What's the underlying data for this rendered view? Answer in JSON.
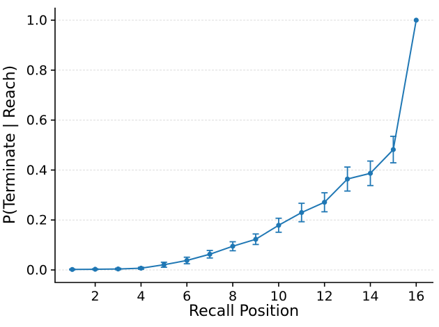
{
  "figure": {
    "title": "",
    "xlabel": "Recall Position",
    "ylabel": "P(Terminate | Reach)"
  },
  "chart_data": {
    "type": "line",
    "title": "",
    "xlabel": "Recall Position",
    "ylabel": "P(Terminate | Reach)",
    "x": [
      1,
      2,
      3,
      4,
      5,
      6,
      7,
      8,
      9,
      10,
      11,
      12,
      13,
      14,
      15,
      16
    ],
    "series": [
      {
        "name": "P(Terminate | Reach)",
        "values": [
          0.002,
          0.003,
          0.004,
          0.007,
          0.021,
          0.038,
          0.063,
          0.095,
          0.123,
          0.179,
          0.23,
          0.271,
          0.364,
          0.387,
          0.482,
          1.0
        ],
        "yerr": [
          0.002,
          0.002,
          0.003,
          0.004,
          0.01,
          0.013,
          0.015,
          0.018,
          0.021,
          0.028,
          0.037,
          0.038,
          0.048,
          0.049,
          0.053,
          0.0
        ]
      }
    ],
    "xticks": [
      2,
      4,
      6,
      8,
      10,
      12,
      14,
      16
    ],
    "xtick_labels": [
      "2",
      "4",
      "6",
      "8",
      "10",
      "12",
      "14",
      "16"
    ],
    "yticks": [
      0.0,
      0.2,
      0.4,
      0.6,
      0.8,
      1.0
    ],
    "ytick_labels": [
      "0.0",
      "0.2",
      "0.4",
      "0.6",
      "0.8",
      "1.0"
    ],
    "xlim": [
      0.25,
      16.75
    ],
    "ylim": [
      -0.05,
      1.05
    ],
    "grid": "horizontal-dashed",
    "legend_position": "none",
    "marker": "circle",
    "error_bars": true,
    "colors": {
      "line": "#1f77b4",
      "marker": "#1f77b4",
      "error_bar": "#1f77b4",
      "grid": "#dcdcdc",
      "axis": "#000000",
      "text": "#000000",
      "background": "#ffffff"
    }
  }
}
